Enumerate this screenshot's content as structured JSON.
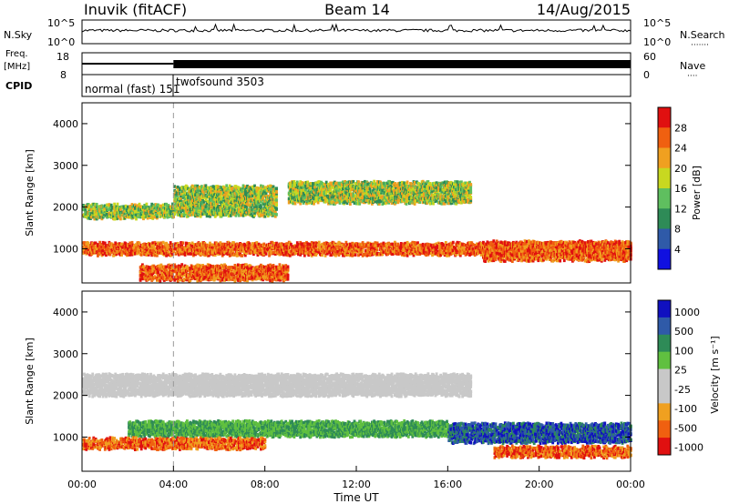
{
  "header": {
    "station": "Inuvik (fitACF)",
    "beam": "Beam 14",
    "date": "14/Aug/2015"
  },
  "nsky_panel": {
    "left_label": "N.Sky",
    "right_label": "N.Search",
    "right_dots": "·······",
    "tick_top": "10^5",
    "tick_bottom": "10^0"
  },
  "freq_panel": {
    "left_label_1": "Freq.",
    "left_label_2": "[MHz]",
    "left_tick_top": "18",
    "left_tick_bottom": "8",
    "right_label": "Nave",
    "right_dots": "····",
    "right_tick_top": "60",
    "right_tick_bottom": "0"
  },
  "cpid_panel": {
    "label": "CPID",
    "modes": [
      {
        "name": "normal (fast) 151",
        "start_hour": 0
      },
      {
        "name": "twofsound 3503",
        "start_hour": 4.0
      }
    ]
  },
  "colors": {
    "power": [
      "#1010e0",
      "#2f5aa8",
      "#2e8b57",
      "#5fbf5f",
      "#c8d820",
      "#f0a020",
      "#f06010",
      "#e01010"
    ],
    "velocity": [
      "#e01010",
      "#f06010",
      "#f0a020",
      "#c8c8c8",
      "#c8c8c8",
      "#60c040",
      "#2e8b57",
      "#2f5aa8",
      "#1010c0"
    ]
  },
  "chart_data": [
    {
      "type": "heatmap",
      "title": "",
      "xlabel": "",
      "ylabel": "Slant Range [km]",
      "xlim": [
        0,
        24
      ],
      "ylim": [
        180,
        4500
      ],
      "x_ticks": [],
      "y_ticks": [
        "1000",
        "2000",
        "3000",
        "4000"
      ],
      "y_tick_values": [
        1000,
        2000,
        3000,
        4000
      ],
      "colorbar": {
        "label": "Power [dB]",
        "ticks": [
          "4",
          "8",
          "12",
          "16",
          "20",
          "24",
          "28"
        ],
        "range": [
          0,
          30
        ]
      },
      "bands": [
        {
          "t_start": 0.0,
          "t_end": 24.0,
          "r_center": 1050,
          "r_width": 280,
          "level": "high"
        },
        {
          "t_start": 2.5,
          "t_end": 9.0,
          "r_center": 480,
          "r_width": 350,
          "level": "high"
        },
        {
          "t_start": 0.0,
          "t_end": 4.0,
          "r_center": 1950,
          "r_width": 320,
          "level": "mid"
        },
        {
          "t_start": 4.0,
          "t_end": 8.5,
          "r_center": 2200,
          "r_width": 700,
          "level": "mid"
        },
        {
          "t_start": 9.0,
          "t_end": 17.0,
          "r_center": 2400,
          "r_width": 500,
          "level": "mid"
        },
        {
          "t_start": 17.5,
          "t_end": 24.0,
          "r_center": 1000,
          "r_width": 450,
          "level": "high"
        }
      ]
    },
    {
      "type": "heatmap",
      "title": "",
      "xlabel": "Time UT",
      "ylabel": "Slant Range [km]",
      "xlim": [
        0,
        24
      ],
      "ylim": [
        180,
        4500
      ],
      "x_ticks": [
        "00:00",
        "04:00",
        "08:00",
        "12:00",
        "16:00",
        "20:00",
        "00:00"
      ],
      "x_tick_values": [
        0,
        4,
        8,
        12,
        16,
        20,
        24
      ],
      "y_ticks": [
        "1000",
        "2000",
        "3000",
        "4000"
      ],
      "y_tick_values": [
        1000,
        2000,
        3000,
        4000
      ],
      "colorbar": {
        "label": "Velocity [m s⁻¹]",
        "ticks": [
          "1000",
          "500",
          "100",
          "25",
          "-25",
          "-100",
          "-500",
          "-1000"
        ]
      },
      "bands": [
        {
          "t_start": 0.0,
          "t_end": 17.0,
          "r_center": 2300,
          "r_width": 500,
          "level": "ground"
        },
        {
          "t_start": 2.0,
          "t_end": 16.0,
          "r_center": 1250,
          "r_width": 350,
          "level": "slow-pos"
        },
        {
          "t_start": 0.0,
          "t_end": 8.0,
          "r_center": 900,
          "r_width": 250,
          "level": "neg"
        },
        {
          "t_start": 16.0,
          "t_end": 24.0,
          "r_center": 1150,
          "r_width": 450,
          "level": "fast-pos"
        },
        {
          "t_start": 18.0,
          "t_end": 24.0,
          "r_center": 700,
          "r_width": 250,
          "level": "neg"
        }
      ]
    }
  ]
}
